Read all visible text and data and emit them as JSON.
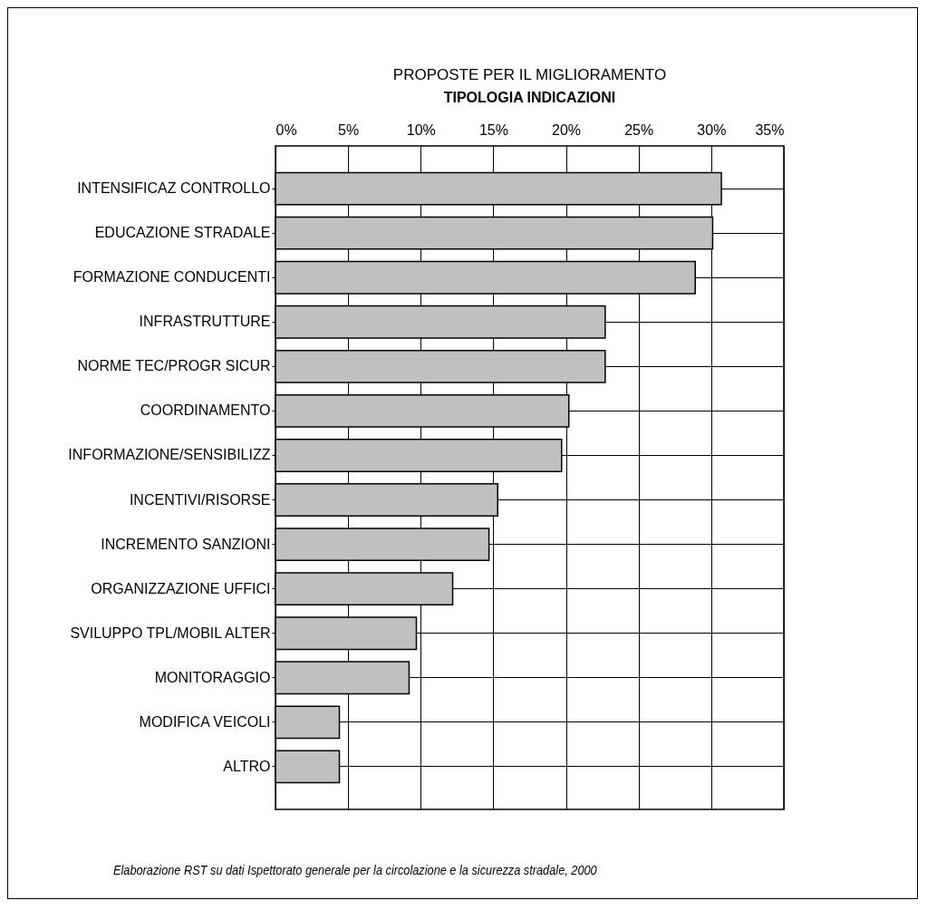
{
  "chart_data": {
    "type": "bar",
    "orientation": "horizontal",
    "title": "PROPOSTE PER IL MIGLIORAMENTO",
    "subtitle": "TIPOLOGIA INDICAZIONI",
    "categories": [
      "INTENSIFICAZ CONTROLLO",
      "EDUCAZIONE STRADALE",
      "FORMAZIONE CONDUCENTI",
      "INFRASTRUTTURE",
      "NORME TEC/PROGR SICUR",
      "COORDINAMENTO",
      "INFORMAZIONE/SENSIBILIZZ",
      "INCENTIVI/RISORSE",
      "INCREMENTO SANZIONI",
      "ORGANIZZAZIONE UFFICI",
      "SVILUPPO TPL/MOBIL ALTER",
      "MONITORAGGIO",
      "MODIFICA VEICOLI",
      "ALTRO"
    ],
    "values": [
      30.7,
      30.1,
      28.9,
      22.7,
      22.7,
      20.2,
      19.7,
      15.3,
      14.7,
      12.2,
      9.7,
      9.2,
      4.4,
      4.4
    ],
    "color": "#c0c0c0",
    "xlim": [
      0,
      35
    ],
    "xticks": [
      {
        "value": 0,
        "label": "0%"
      },
      {
        "value": 5,
        "label": "5%"
      },
      {
        "value": 10,
        "label": "10%"
      },
      {
        "value": 15,
        "label": "15%"
      },
      {
        "value": 20,
        "label": "20%"
      },
      {
        "value": 25,
        "label": "25%"
      },
      {
        "value": 30,
        "label": "30%"
      },
      {
        "value": 35,
        "label": "35%"
      }
    ],
    "grid": true,
    "annotations": [
      "Elaborazione RST su dati Ispettorato generale per la circolazione e la sicurezza stradale, 2000"
    ]
  }
}
